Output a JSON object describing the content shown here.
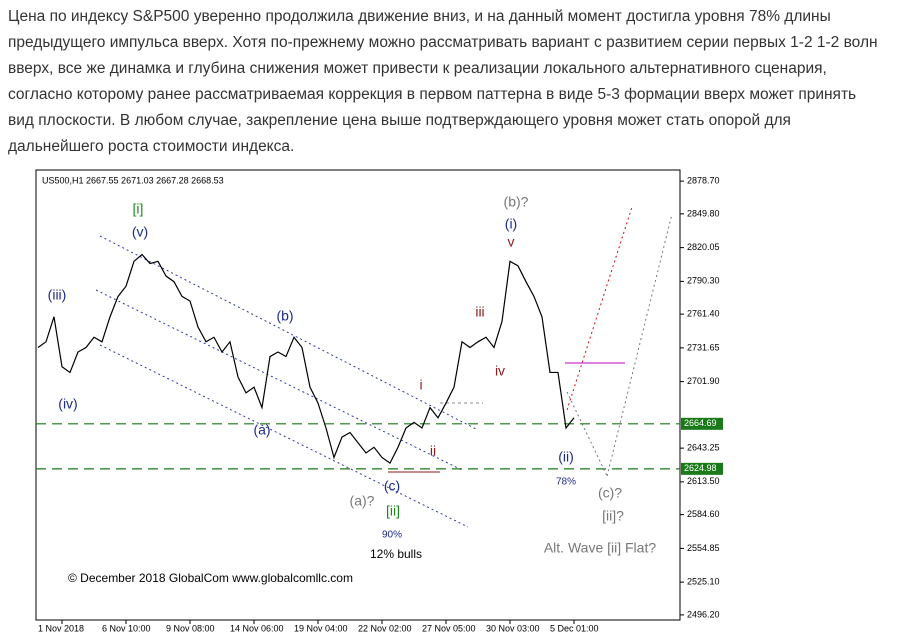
{
  "article": {
    "text": "Цена по индексу S&P500 уверенно продолжила движение вниз, и на данный момент достигла уровня 78% длины предыдущего импульса вверх. Хотя по-прежнему можно рассматривать вариант с развитием серии первых 1-2 1-2 волн вверх, все же динамка и глубина снижения может привести к реализации локального альтернативного сценария, согласно которому ранее рассматриваемая коррекция в первом паттерна в виде 5-3 формации вверх может принять вид плоскости. В любом случае, закрепление цена выше подтверждающего уровня может стать опорой для дальнейшего роста стоимости индекса."
  },
  "chart_data": {
    "type": "line",
    "title": "US500,H1  2667.55 2671.03 2667.28 2668.53",
    "categories": [
      null,
      null,
      null,
      "1 Nov 2018",
      null,
      null,
      null,
      null,
      null,
      null,
      null,
      "6 Nov 10:00",
      null,
      null,
      null,
      null,
      null,
      null,
      null,
      "9 Nov 08:00",
      null,
      null,
      null,
      null,
      null,
      null,
      null,
      "14 Nov 06:00",
      null,
      null,
      null,
      null,
      null,
      null,
      null,
      "19 Nov 04:00",
      null,
      null,
      null,
      null,
      null,
      null,
      null,
      "22 Nov 02:00",
      null,
      null,
      null,
      null,
      null,
      null,
      null,
      "27 Nov 05:00",
      null,
      null,
      null,
      null,
      null,
      null,
      null,
      "30 Nov 03:00",
      null,
      null,
      null,
      null,
      null,
      null,
      null,
      "5 Dec 01:00",
      null,
      null,
      null,
      null,
      null,
      null,
      null,
      null,
      null,
      null,
      null,
      null,
      null
    ],
    "values": [
      2732,
      2737,
      2759,
      2715,
      2710,
      2728,
      2732,
      2741,
      2737,
      2759,
      2777,
      2786,
      2808,
      2814,
      2806,
      2808,
      2795,
      2790,
      2777,
      2773,
      2750,
      2737,
      2741,
      2728,
      2737,
      2706,
      2692,
      2697,
      2679,
      2724,
      2728,
      2724,
      2741,
      2732,
      2697,
      2683,
      2661,
      2635,
      2653,
      2657,
      2648,
      2639,
      2644,
      2635,
      2630,
      2644,
      2661,
      2666,
      2661,
      2679,
      2670,
      2683,
      2697,
      2737,
      2732,
      2737,
      2741,
      2732,
      2755,
      2808,
      2804,
      2790,
      2777,
      2759,
      2710,
      2710,
      2661,
      2670,
      null,
      null,
      null,
      null,
      null,
      null,
      null,
      null,
      null,
      null,
      null,
      null,
      null
    ],
    "color": "#000000",
    "ylim": [
      2491.7,
      2888.5
    ],
    "yticks": [
      {
        "value": 2878.7,
        "label": "2878.70"
      },
      {
        "value": 2849.8,
        "label": "2849.80"
      },
      {
        "value": 2820.05,
        "label": "2820.05"
      },
      {
        "value": 2790.3,
        "label": "2790.30"
      },
      {
        "value": 2761.4,
        "label": "2761.40"
      },
      {
        "value": 2731.65,
        "label": "2731.65"
      },
      {
        "value": 2701.9,
        "label": "2701.90"
      },
      {
        "value": 2643.25,
        "label": "2643.25"
      },
      {
        "value": 2613.5,
        "label": "2613.50"
      },
      {
        "value": 2584.6,
        "label": "2584.60"
      },
      {
        "value": 2554.85,
        "label": "2554.85"
      },
      {
        "value": 2525.1,
        "label": "2525.10"
      },
      {
        "value": 2496.2,
        "label": "2496.20"
      }
    ],
    "levels": [
      2664.69,
      2624.98
    ],
    "level_color": "#1a7a1a",
    "annotations": [
      "[i]",
      "(v)",
      "(iii)",
      "(iv)",
      "(b)",
      "(a)",
      "(c)",
      "(a)?",
      "[ii]",
      "90%",
      "12% bulls",
      "i",
      "ii",
      "iii",
      "iv",
      "v",
      "(i)",
      "(b)?",
      "(ii)",
      "78%",
      "(c)?",
      "[ii]?",
      "Alt. Wave [ii] Flat?",
      "© December 2018 GlobalCom www.globalcomllc.com"
    ]
  }
}
